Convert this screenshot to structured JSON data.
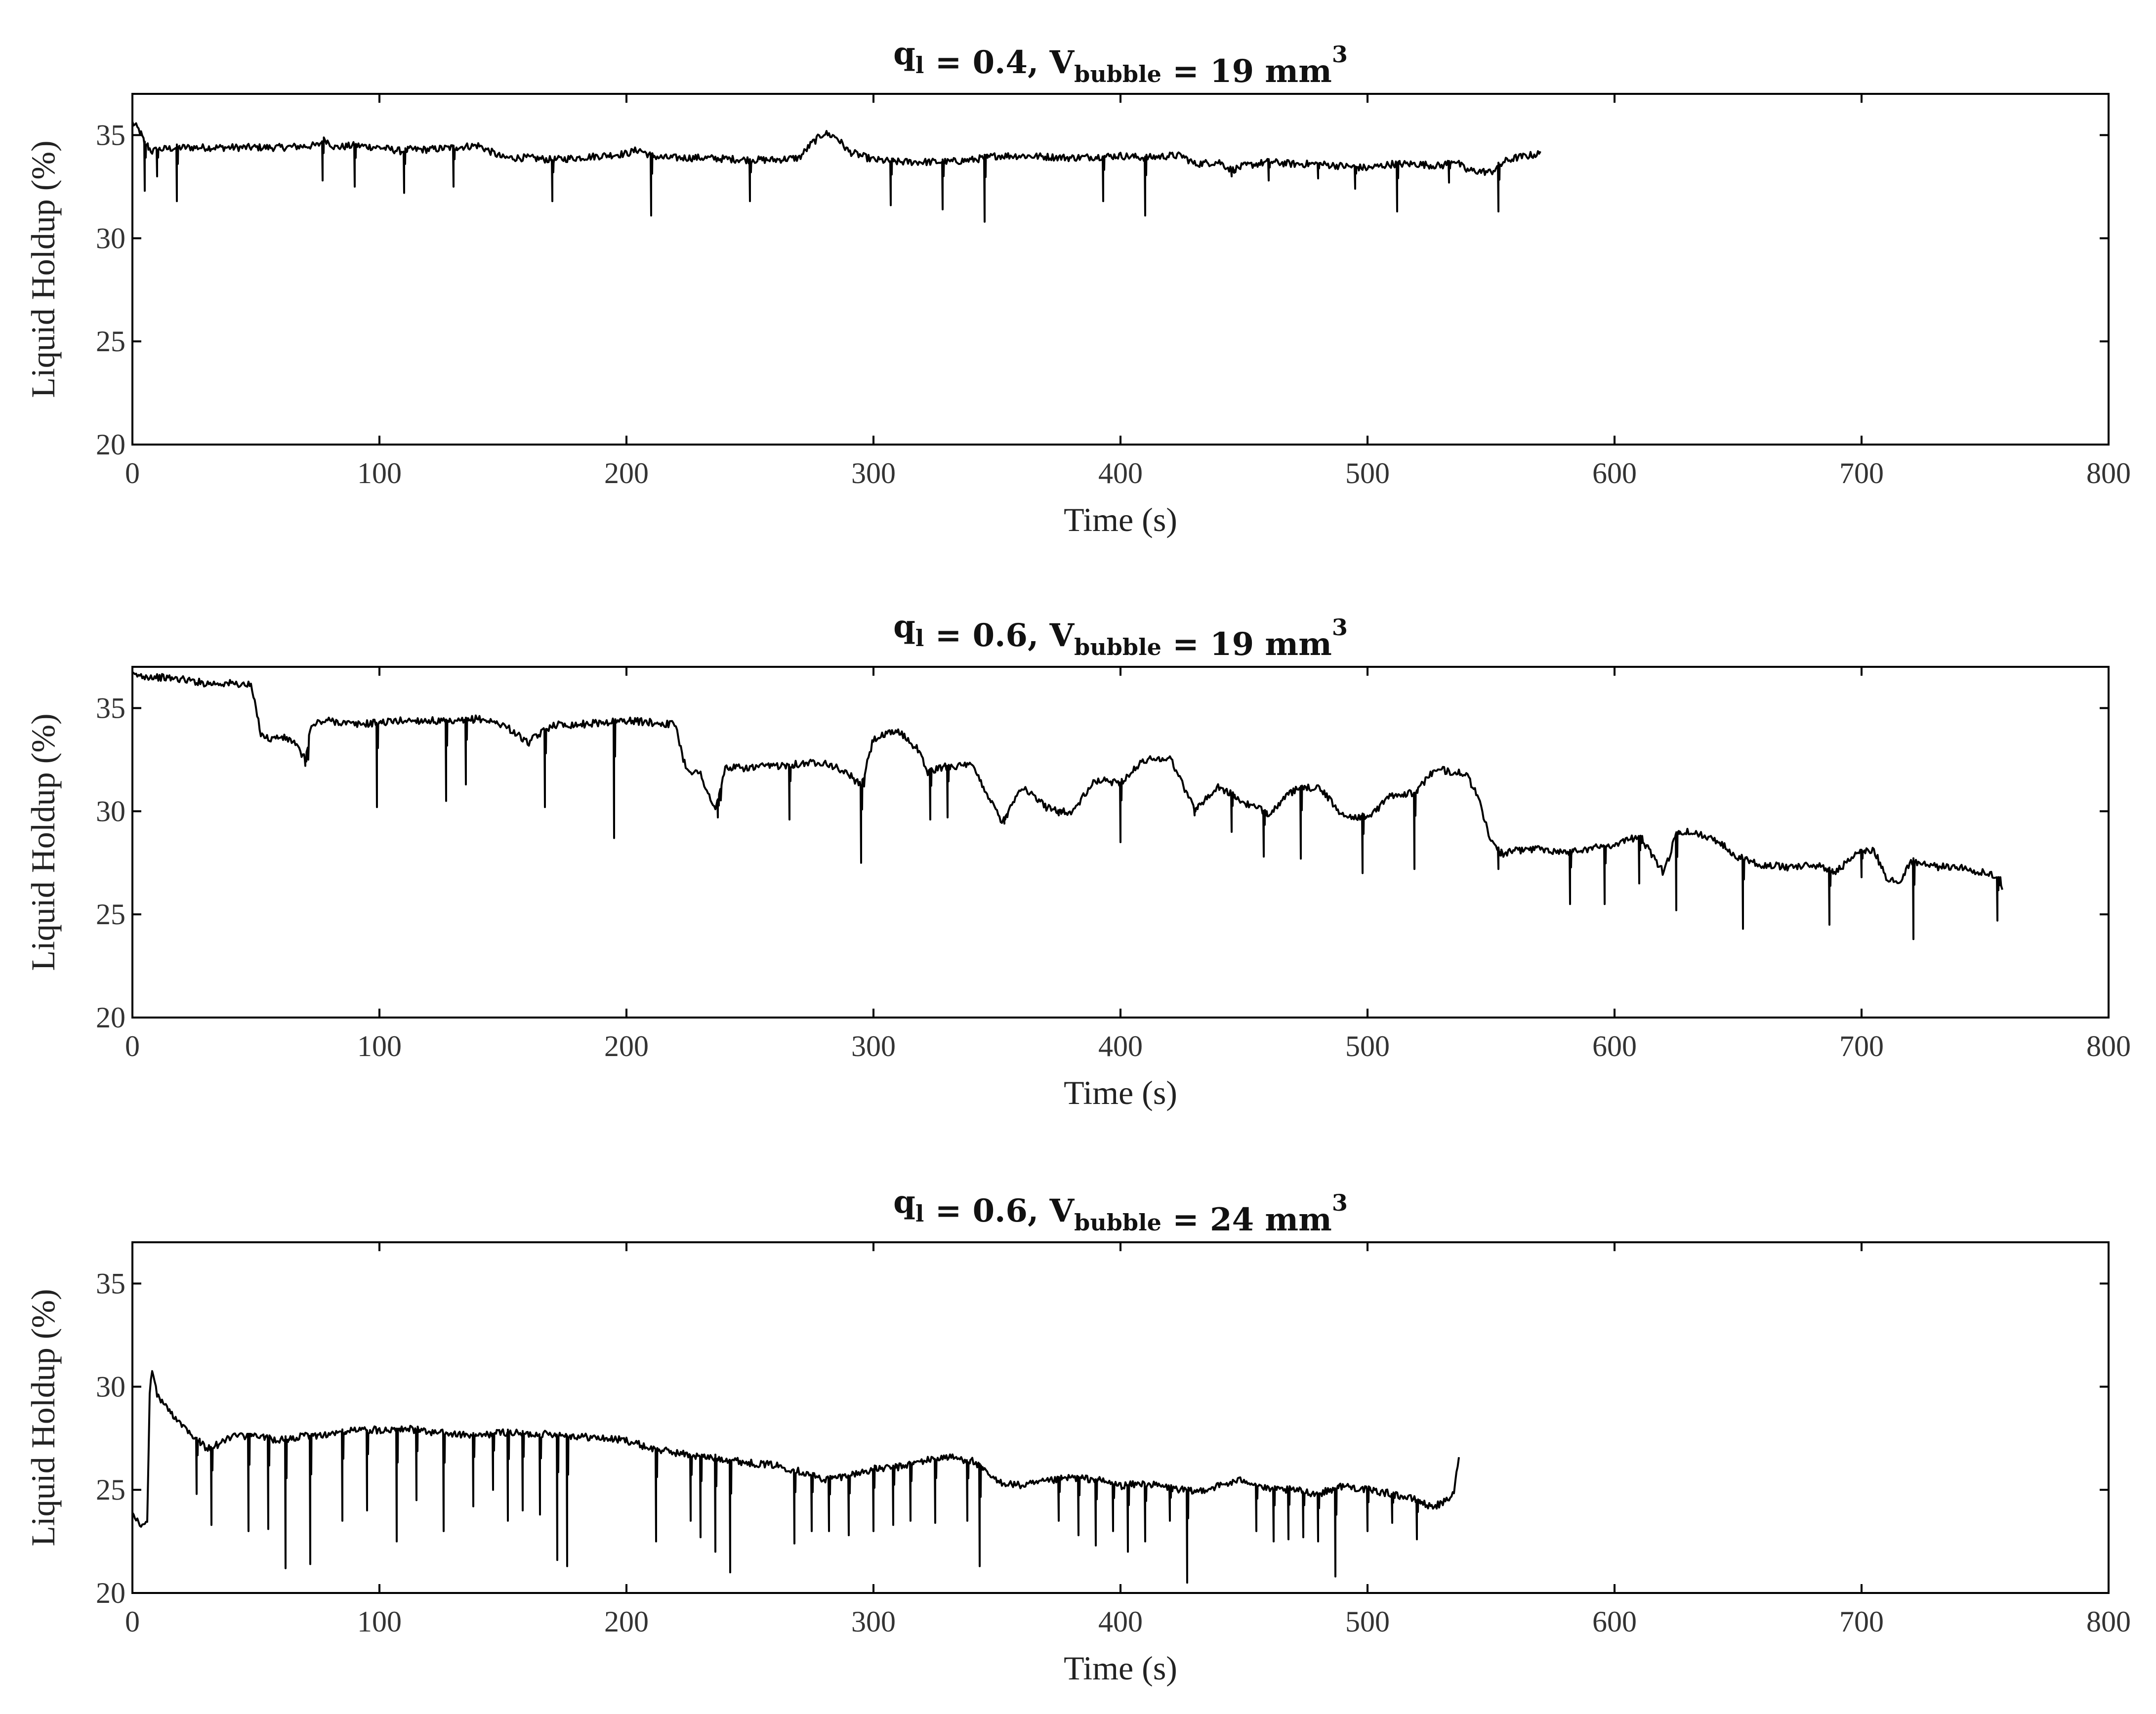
{
  "chart_data": [
    {
      "type": "line",
      "title": {
        "q": "q",
        "q_sub": "l",
        "q_val": " = 0.4, V",
        "v_sub": "bubble",
        "v_val": " = 19 mm",
        "sup": "3"
      },
      "xlabel": "Time (s)",
      "ylabel": "Liquid Holdup (%)",
      "xlim": [
        0,
        800
      ],
      "ylim": [
        20,
        37
      ],
      "xticks": [
        0,
        100,
        200,
        300,
        400,
        500,
        600,
        700,
        800
      ],
      "yticks": [
        20,
        25,
        30,
        35
      ],
      "grid": false,
      "series": [
        {
          "x": [
            0,
            3,
            5,
            8,
            10,
            20,
            40,
            60,
            75,
            78,
            82,
            90,
            100,
            110,
            112,
            120,
            130,
            140,
            145,
            150,
            160,
            170,
            180,
            190,
            200,
            205,
            210,
            215,
            230,
            250,
            260,
            270,
            275,
            280,
            285,
            290,
            295,
            300,
            310,
            320,
            330,
            340,
            345,
            350,
            360,
            380,
            400,
            410,
            420,
            425,
            430,
            440,
            445,
            450,
            460,
            470,
            480,
            490,
            500,
            510,
            520,
            530,
            535,
            540,
            550,
            555,
            560,
            565,
            570
          ],
          "y": [
            35.6,
            35.2,
            34.6,
            34.2,
            34.3,
            34.4,
            34.4,
            34.4,
            34.5,
            34.8,
            34.4,
            34.5,
            34.4,
            34.2,
            34.3,
            34.3,
            34.4,
            34.5,
            34.2,
            33.9,
            33.9,
            33.8,
            33.9,
            34.0,
            34.1,
            34.3,
            34.0,
            33.9,
            33.9,
            33.8,
            33.8,
            33.9,
            34.6,
            35.1,
            34.9,
            34.2,
            34.0,
            33.8,
            33.7,
            33.7,
            33.7,
            33.8,
            33.9,
            34.0,
            34.0,
            33.9,
            34.0,
            33.9,
            34.0,
            34.0,
            33.6,
            33.7,
            33.3,
            33.5,
            33.7,
            33.6,
            33.6,
            33.5,
            33.4,
            33.6,
            33.6,
            33.5,
            33.8,
            33.3,
            33.2,
            33.7,
            33.9,
            34.0,
            34.1
          ],
          "dips": [
            [
              5,
              32.3
            ],
            [
              10,
              33.0
            ],
            [
              18,
              31.8
            ],
            [
              77,
              32.8
            ],
            [
              90,
              32.5
            ],
            [
              110,
              32.2
            ],
            [
              130,
              32.5
            ],
            [
              170,
              31.8
            ],
            [
              210,
              31.1
            ],
            [
              250,
              31.8
            ],
            [
              307,
              31.6
            ],
            [
              328,
              31.4
            ],
            [
              345,
              30.8
            ],
            [
              393,
              31.8
            ],
            [
              410,
              31.1
            ],
            [
              445,
              33.0
            ],
            [
              460,
              32.8
            ],
            [
              480,
              32.9
            ],
            [
              495,
              32.4
            ],
            [
              512,
              31.3
            ],
            [
              533,
              32.7
            ],
            [
              553,
              31.3
            ]
          ]
        }
      ]
    },
    {
      "type": "line",
      "title": {
        "q": "q",
        "q_sub": "l",
        "q_val": " = 0.6, V",
        "v_sub": "bubble",
        "v_val": " = 19 mm",
        "sup": "3"
      },
      "xlabel": "Time (s)",
      "ylabel": "Liquid Holdup (%)",
      "xlim": [
        0,
        800
      ],
      "ylim": [
        20,
        37
      ],
      "xticks": [
        0,
        100,
        200,
        300,
        400,
        500,
        600,
        700,
        800
      ],
      "yticks": [
        20,
        25,
        30,
        35
      ],
      "grid": false,
      "series": [
        {
          "x": [
            0,
            10,
            20,
            30,
            40,
            48,
            52,
            55,
            60,
            65,
            70,
            72,
            75,
            80,
            90,
            100,
            110,
            120,
            130,
            140,
            150,
            155,
            160,
            170,
            180,
            190,
            200,
            210,
            220,
            223,
            225,
            230,
            236,
            240,
            250,
            260,
            270,
            280,
            290,
            295,
            300,
            310,
            318,
            322,
            330,
            340,
            352,
            360,
            370,
            380,
            390,
            400,
            410,
            420,
            430,
            440,
            450,
            460,
            470,
            480,
            490,
            500,
            510,
            520,
            525,
            530,
            540,
            545,
            550,
            555,
            560,
            570,
            580,
            590,
            600,
            610,
            620,
            625,
            630,
            640,
            650,
            660,
            670,
            680,
            690,
            700,
            705,
            710,
            715,
            720,
            730,
            740,
            750,
            755,
            757
          ],
          "y": [
            36.6,
            36.5,
            36.4,
            36.2,
            36.2,
            36.1,
            33.8,
            33.5,
            33.6,
            33.4,
            32.5,
            34.0,
            34.3,
            34.4,
            34.2,
            34.3,
            34.4,
            34.4,
            34.3,
            34.5,
            34.2,
            33.8,
            33.3,
            34.2,
            34.2,
            34.3,
            34.4,
            34.3,
            34.2,
            32.5,
            32.0,
            31.8,
            30.0,
            32.1,
            32.1,
            32.2,
            32.3,
            32.4,
            31.8,
            31.2,
            33.5,
            33.9,
            33.0,
            31.9,
            32.2,
            32.2,
            29.5,
            31.2,
            30.2,
            29.9,
            31.5,
            31.4,
            32.5,
            32.6,
            30.1,
            31.2,
            30.4,
            29.9,
            31.0,
            31.2,
            29.8,
            29.7,
            30.8,
            30.9,
            31.8,
            32.0,
            31.8,
            30.6,
            28.5,
            27.9,
            28.1,
            28.2,
            28.0,
            28.2,
            28.4,
            28.8,
            27.0,
            28.9,
            29.0,
            28.7,
            27.8,
            27.4,
            27.3,
            27.4,
            27.1,
            28.1,
            28.1,
            26.8,
            26.5,
            27.6,
            27.3,
            27.3,
            27.0,
            26.8,
            26.3
          ],
          "dips": [
            [
              70,
              32.2
            ],
            [
              99,
              30.2
            ],
            [
              127,
              30.5
            ],
            [
              135,
              31.3
            ],
            [
              167,
              30.2
            ],
            [
              195,
              28.7
            ],
            [
              237,
              29.7
            ],
            [
              266,
              29.6
            ],
            [
              295,
              27.5
            ],
            [
              323,
              29.6
            ],
            [
              330,
              29.7
            ],
            [
              353,
              29.4
            ],
            [
              375,
              29.8
            ],
            [
              400,
              28.5
            ],
            [
              430,
              29.8
            ],
            [
              445,
              29.0
            ],
            [
              458,
              27.8
            ],
            [
              473,
              27.7
            ],
            [
              498,
              27.0
            ],
            [
              519,
              27.2
            ],
            [
              553,
              27.2
            ],
            [
              582,
              25.5
            ],
            [
              596,
              25.5
            ],
            [
              610,
              26.5
            ],
            [
              625,
              25.2
            ],
            [
              652,
              24.3
            ],
            [
              687,
              24.5
            ],
            [
              700,
              26.8
            ],
            [
              721,
              23.8
            ],
            [
              755,
              24.7
            ]
          ]
        }
      ]
    },
    {
      "type": "line",
      "title": {
        "q": "q",
        "q_sub": "l",
        "q_val": " = 0.6, V",
        "v_sub": "bubble",
        "v_val": " = 24 mm",
        "sup": "3"
      },
      "xlabel": "Time (s)",
      "ylabel": "Liquid Holdup (%)",
      "xlim": [
        0,
        800
      ],
      "ylim": [
        20,
        37
      ],
      "xticks": [
        0,
        100,
        200,
        300,
        400,
        500,
        600,
        700,
        800
      ],
      "yticks": [
        20,
        25,
        30,
        35
      ],
      "grid": false,
      "series": [
        {
          "x": [
            0,
            2,
            4,
            6,
            7,
            8,
            10,
            15,
            20,
            25,
            30,
            35,
            40,
            50,
            60,
            70,
            80,
            90,
            100,
            110,
            120,
            130,
            140,
            150,
            160,
            170,
            180,
            190,
            200,
            210,
            220,
            230,
            240,
            250,
            260,
            270,
            280,
            290,
            300,
            310,
            320,
            330,
            340,
            350,
            360,
            370,
            380,
            390,
            400,
            410,
            420,
            430,
            440,
            450,
            460,
            470,
            480,
            490,
            500,
            510,
            520,
            525,
            530,
            535,
            537
          ],
          "y": [
            24.0,
            23.5,
            23.2,
            23.4,
            29.8,
            30.8,
            29.6,
            28.8,
            28.2,
            27.6,
            27.0,
            27.2,
            27.6,
            27.6,
            27.4,
            27.6,
            27.7,
            27.9,
            27.9,
            28.0,
            27.8,
            27.7,
            27.6,
            27.8,
            27.7,
            27.7,
            27.6,
            27.5,
            27.4,
            27.0,
            26.8,
            26.6,
            26.5,
            26.3,
            26.2,
            25.9,
            25.5,
            25.7,
            26.0,
            26.1,
            26.4,
            26.6,
            26.4,
            25.4,
            25.2,
            25.4,
            25.6,
            25.5,
            25.2,
            25.3,
            25.1,
            24.9,
            25.2,
            25.5,
            25.0,
            25.0,
            24.8,
            25.2,
            25.0,
            24.8,
            24.5,
            24.2,
            24.3,
            24.8,
            26.7
          ],
          "dips": [
            [
              26,
              24.8
            ],
            [
              32,
              23.3
            ],
            [
              47,
              23.0
            ],
            [
              55,
              23.1
            ],
            [
              62,
              21.2
            ],
            [
              72,
              21.4
            ],
            [
              85,
              23.5
            ],
            [
              95,
              24.0
            ],
            [
              107,
              22.5
            ],
            [
              115,
              24.5
            ],
            [
              126,
              23.0
            ],
            [
              138,
              24.2
            ],
            [
              146,
              25.0
            ],
            [
              152,
              23.5
            ],
            [
              158,
              24.0
            ],
            [
              165,
              23.8
            ],
            [
              172,
              21.6
            ],
            [
              176,
              21.3
            ],
            [
              212,
              22.5
            ],
            [
              226,
              23.5
            ],
            [
              230,
              22.7
            ],
            [
              236,
              22.0
            ],
            [
              242,
              21.0
            ],
            [
              268,
              22.4
            ],
            [
              275,
              23.0
            ],
            [
              282,
              23.0
            ],
            [
              290,
              22.8
            ],
            [
              300,
              23.0
            ],
            [
              308,
              23.3
            ],
            [
              315,
              23.5
            ],
            [
              325,
              23.4
            ],
            [
              338,
              23.5
            ],
            [
              343,
              21.3
            ],
            [
              375,
              23.5
            ],
            [
              383,
              22.8
            ],
            [
              390,
              22.3
            ],
            [
              397,
              23.0
            ],
            [
              403,
              22.0
            ],
            [
              410,
              22.5
            ],
            [
              420,
              23.5
            ],
            [
              427,
              20.5
            ],
            [
              455,
              23.0
            ],
            [
              462,
              22.5
            ],
            [
              468,
              22.6
            ],
            [
              474,
              22.7
            ],
            [
              480,
              22.5
            ],
            [
              487,
              20.8
            ],
            [
              500,
              23.0
            ],
            [
              510,
              23.4
            ],
            [
              520,
              22.6
            ]
          ]
        }
      ]
    }
  ]
}
